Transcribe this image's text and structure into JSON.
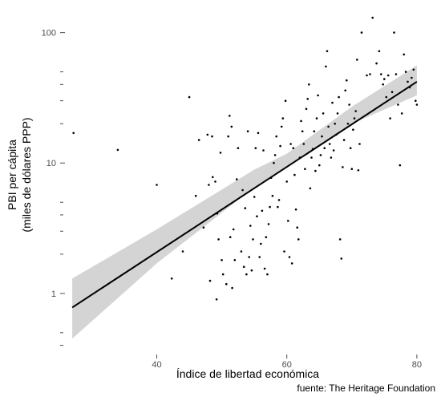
{
  "chart_data": {
    "type": "scatter",
    "title": "",
    "xlabel": "Índice de libertad económica",
    "ylabel_line1": "PBI per cápita",
    "ylabel_line2": "(miles de dólares PPP)",
    "source": "fuente: The Heritage Foundation",
    "xlim": [
      26,
      81
    ],
    "ylim": [
      0.35,
      150
    ],
    "yscale": "log",
    "x_ticks": [
      40,
      60,
      80
    ],
    "x_tick_labels": [
      "40",
      "60",
      "80"
    ],
    "y_ticks_major": [
      1,
      10,
      100
    ],
    "y_tick_labels": [
      "1",
      "10",
      "100"
    ],
    "y_ticks_minor": [
      0.4,
      0.5,
      2,
      3,
      4,
      5,
      20,
      30,
      40,
      50
    ],
    "grid": false,
    "point_color": "#000000",
    "line_color": "#000000",
    "band_color": "#d4d4d4",
    "trend": {
      "x": [
        27,
        80
      ],
      "y": [
        0.78,
        42
      ]
    },
    "band": {
      "x": [
        27,
        40,
        55,
        60,
        70,
        80
      ],
      "lower": [
        0.45,
        1.7,
        6.5,
        9.3,
        20,
        33
      ],
      "upper": [
        1.3,
        3.1,
        8.9,
        11.8,
        27,
        56
      ]
    },
    "points": [
      [
        27.2,
        17
      ],
      [
        34.0,
        12.6
      ],
      [
        40.0,
        6.8
      ],
      [
        42.3,
        1.3
      ],
      [
        44.0,
        2.1
      ],
      [
        45.0,
        32
      ],
      [
        46.0,
        5.6
      ],
      [
        46.5,
        15
      ],
      [
        47.2,
        3.2
      ],
      [
        47.8,
        16.5
      ],
      [
        48.0,
        6.8
      ],
      [
        48.5,
        16
      ],
      [
        48.2,
        1.25
      ],
      [
        48.6,
        7.8
      ],
      [
        49.0,
        7.2
      ],
      [
        49.3,
        4.1
      ],
      [
        49.5,
        2.6
      ],
      [
        49.8,
        12
      ],
      [
        49.2,
        0.9
      ],
      [
        50.0,
        1.8
      ],
      [
        50.2,
        1.4
      ],
      [
        50.7,
        1.18
      ],
      [
        51.0,
        16
      ],
      [
        51.2,
        23
      ],
      [
        51.3,
        2.7
      ],
      [
        51.5,
        19
      ],
      [
        51.8,
        3.1
      ],
      [
        51.6,
        1.1
      ],
      [
        52.0,
        1.8
      ],
      [
        52.3,
        7.5
      ],
      [
        52.5,
        13
      ],
      [
        53.0,
        2.1
      ],
      [
        53.2,
        6.2
      ],
      [
        53.4,
        1.6
      ],
      [
        53.6,
        4.5
      ],
      [
        53.8,
        1.4
      ],
      [
        54.0,
        17.5
      ],
      [
        54.2,
        1.9
      ],
      [
        54.4,
        3.3
      ],
      [
        54.6,
        1.5
      ],
      [
        54.8,
        2.6
      ],
      [
        55.0,
        5.5
      ],
      [
        55.2,
        13
      ],
      [
        55.4,
        3.9
      ],
      [
        55.6,
        17
      ],
      [
        55.8,
        1.9
      ],
      [
        56.0,
        2.4
      ],
      [
        56.2,
        4.3
      ],
      [
        56.4,
        12.5
      ],
      [
        56.6,
        1.55
      ],
      [
        56.8,
        2.7
      ],
      [
        57.0,
        1.4
      ],
      [
        57.2,
        3.4
      ],
      [
        57.4,
        4.6
      ],
      [
        57.6,
        7.7
      ],
      [
        57.8,
        5.6
      ],
      [
        58.0,
        10
      ],
      [
        58.2,
        11.5
      ],
      [
        58.4,
        16
      ],
      [
        58.6,
        4.6
      ],
      [
        58.8,
        5.2
      ],
      [
        59.0,
        13.5
      ],
      [
        59.2,
        19
      ],
      [
        59.4,
        22
      ],
      [
        59.6,
        2.1
      ],
      [
        59.8,
        30
      ],
      [
        60.0,
        7.2
      ],
      [
        60.2,
        3.6
      ],
      [
        60.4,
        1.9
      ],
      [
        60.6,
        14
      ],
      [
        60.8,
        1.7
      ],
      [
        61.0,
        13
      ],
      [
        61.2,
        8.1
      ],
      [
        61.4,
        4.4
      ],
      [
        61.6,
        3.2
      ],
      [
        61.8,
        2.6
      ],
      [
        62.0,
        11
      ],
      [
        62.2,
        21
      ],
      [
        62.4,
        17.5
      ],
      [
        62.6,
        14
      ],
      [
        62.8,
        9
      ],
      [
        63.0,
        26
      ],
      [
        63.2,
        31
      ],
      [
        63.4,
        40
      ],
      [
        63.6,
        6.4
      ],
      [
        63.8,
        11
      ],
      [
        64.0,
        12.8
      ],
      [
        64.2,
        17.5
      ],
      [
        64.4,
        8.7
      ],
      [
        64.6,
        22
      ],
      [
        64.8,
        33
      ],
      [
        65.0,
        9.6
      ],
      [
        65.2,
        11.5
      ],
      [
        65.4,
        16
      ],
      [
        65.6,
        24
      ],
      [
        65.8,
        13
      ],
      [
        66.0,
        55
      ],
      [
        66.2,
        72
      ],
      [
        66.4,
        19
      ],
      [
        66.6,
        14
      ],
      [
        66.8,
        11
      ],
      [
        67.0,
        29
      ],
      [
        67.2,
        12.5
      ],
      [
        67.4,
        20
      ],
      [
        67.6,
        16.5
      ],
      [
        67.8,
        24
      ],
      [
        68.0,
        32
      ],
      [
        68.2,
        2.6
      ],
      [
        68.4,
        1.85
      ],
      [
        68.6,
        9.3
      ],
      [
        68.8,
        15
      ],
      [
        69.0,
        36
      ],
      [
        69.2,
        43
      ],
      [
        69.4,
        20
      ],
      [
        69.6,
        28
      ],
      [
        69.8,
        13
      ],
      [
        70.0,
        9
      ],
      [
        70.2,
        18
      ],
      [
        70.4,
        22
      ],
      [
        70.6,
        25
      ],
      [
        70.8,
        62
      ],
      [
        71.0,
        8.8
      ],
      [
        71.2,
        14
      ],
      [
        71.5,
        100
      ],
      [
        72.3,
        47
      ],
      [
        72.8,
        48
      ],
      [
        73.2,
        130
      ],
      [
        73.8,
        58
      ],
      [
        74.2,
        72
      ],
      [
        74.5,
        48
      ],
      [
        74.8,
        40
      ],
      [
        75.0,
        44
      ],
      [
        75.3,
        32
      ],
      [
        75.6,
        47
      ],
      [
        75.9,
        22
      ],
      [
        76.2,
        35
      ],
      [
        76.5,
        100
      ],
      [
        76.8,
        48
      ],
      [
        77.1,
        28
      ],
      [
        77.4,
        9.6
      ],
      [
        77.7,
        24
      ],
      [
        78.0,
        68
      ],
      [
        78.3,
        50
      ],
      [
        78.6,
        42
      ],
      [
        78.9,
        38
      ],
      [
        79.2,
        45
      ],
      [
        79.5,
        52
      ],
      [
        79.8,
        30
      ],
      [
        80.0,
        28
      ]
    ]
  }
}
